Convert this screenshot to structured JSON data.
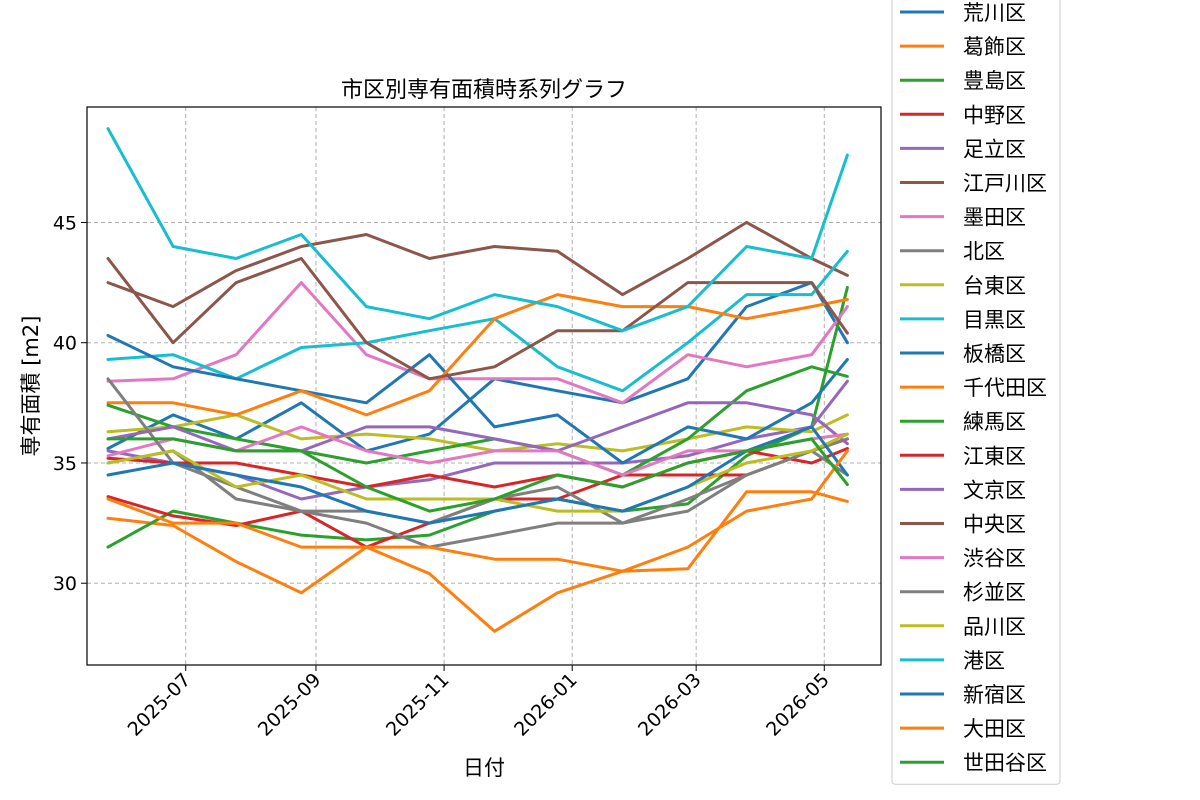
{
  "chart_data": {
    "type": "line",
    "title": "市区別専有面積時系列グラフ",
    "xlabel": "日付",
    "ylabel": "専有面積 [m2]",
    "x_range": [
      "2025-05-15",
      "2026-05-28"
    ],
    "ylim": [
      26.6,
      49.8
    ],
    "x_ticks": [
      "2025-07",
      "2025-09",
      "2025-11",
      "2026-01",
      "2026-03",
      "2026-05"
    ],
    "y_ticks": [
      30,
      35,
      40,
      45
    ],
    "grid": true,
    "legend_position": "right",
    "x": [
      "2025-05-25",
      "2025-06-25",
      "2025-07-25",
      "2025-08-25",
      "2025-09-25",
      "2025-10-25",
      "2025-11-25",
      "2025-12-25",
      "2026-01-25",
      "2026-02-25",
      "2026-03-25",
      "2026-04-25",
      "2026-05-12"
    ],
    "series": [
      {
        "name": "荒川区",
        "color": "#1f77b4",
        "values": [
          35.6,
          37.0,
          36.0,
          37.5,
          35.5,
          36.2,
          38.5,
          38.0,
          37.5,
          38.5,
          41.5,
          42.5,
          40.0
        ]
      },
      {
        "name": "葛飾区",
        "color": "#ff7f0e",
        "values": [
          32.7,
          32.4,
          30.9,
          29.6,
          31.5,
          30.4,
          28.0,
          29.6,
          30.5,
          30.6,
          33.8,
          33.8,
          33.4
        ]
      },
      {
        "name": "豊島区",
        "color": "#2ca02c",
        "values": [
          31.5,
          33.0,
          32.5,
          32.0,
          31.8,
          32.0,
          33.0,
          33.5,
          33.0,
          33.3,
          35.3,
          36.5,
          42.3
        ]
      },
      {
        "name": "中野区",
        "color": "#d62728",
        "values": [
          33.6,
          32.8,
          32.4,
          33.0,
          31.5,
          32.5,
          33.5,
          33.5,
          34.5,
          34.5,
          34.5,
          35.5,
          36.0
        ]
      },
      {
        "name": "足立区",
        "color": "#9467bd",
        "values": [
          35.5,
          35.0,
          34.5,
          33.5,
          34.0,
          34.3,
          35.0,
          35.0,
          35.0,
          35.3,
          36.0,
          36.5,
          38.4
        ]
      },
      {
        "name": "江戸川区",
        "color": "#8c564b",
        "values": [
          42.5,
          41.5,
          43.0,
          44.0,
          44.5,
          43.5,
          44.0,
          43.8,
          42.0,
          43.5,
          45.0,
          43.5,
          42.8
        ]
      },
      {
        "name": "墨田区",
        "color": "#e377c2",
        "values": [
          38.4,
          38.5,
          39.5,
          42.5,
          39.5,
          38.5,
          38.5,
          38.5,
          37.5,
          39.5,
          39.0,
          39.5,
          41.5
        ]
      },
      {
        "name": "北区",
        "color": "#7f7f7f",
        "values": [
          35.0,
          35.5,
          33.5,
          33.0,
          33.0,
          32.5,
          33.5,
          34.0,
          32.5,
          33.0,
          34.5,
          35.5,
          36.0
        ]
      },
      {
        "name": "台東区",
        "color": "#bcbd22",
        "values": [
          36.3,
          36.5,
          37.0,
          36.0,
          36.2,
          36.0,
          35.5,
          35.8,
          35.5,
          36.0,
          36.5,
          36.3,
          37.0
        ]
      },
      {
        "name": "目黒区",
        "color": "#17becf",
        "values": [
          39.3,
          39.5,
          38.5,
          39.8,
          40.0,
          40.5,
          41.0,
          39.0,
          38.0,
          40.0,
          42.0,
          42.0,
          43.8
        ]
      },
      {
        "name": "板橋区",
        "color": "#1f77b4",
        "values": [
          40.3,
          39.0,
          38.5,
          38.0,
          37.5,
          39.5,
          36.5,
          37.0,
          35.0,
          36.5,
          36.0,
          37.5,
          39.3
        ]
      },
      {
        "name": "千代田区",
        "color": "#ff7f0e",
        "values": [
          37.5,
          37.5,
          37.0,
          38.0,
          37.0,
          38.0,
          41.0,
          42.0,
          41.5,
          41.5,
          41.0,
          41.5,
          41.8
        ]
      },
      {
        "name": "練馬区",
        "color": "#2ca02c",
        "values": [
          37.4,
          36.5,
          36.0,
          35.5,
          35.0,
          35.5,
          36.0,
          35.5,
          34.5,
          36.0,
          38.0,
          39.0,
          38.6
        ]
      },
      {
        "name": "江東区",
        "color": "#d62728",
        "values": [
          35.2,
          35.0,
          35.0,
          34.5,
          34.0,
          34.5,
          34.0,
          34.5,
          34.0,
          35.0,
          35.5,
          35.0,
          35.6
        ]
      },
      {
        "name": "文京区",
        "color": "#9467bd",
        "values": [
          36.0,
          36.5,
          35.5,
          35.5,
          36.5,
          36.5,
          36.0,
          35.5,
          36.5,
          37.5,
          37.5,
          37.0,
          35.8
        ]
      },
      {
        "name": "中央区",
        "color": "#8c564b",
        "values": [
          43.5,
          40.0,
          42.5,
          43.5,
          40.0,
          38.5,
          39.0,
          40.5,
          40.5,
          42.5,
          42.5,
          42.5,
          40.4
        ]
      },
      {
        "name": "渋谷区",
        "color": "#e377c2",
        "values": [
          35.3,
          36.0,
          35.5,
          36.5,
          35.5,
          35.0,
          35.5,
          35.5,
          34.5,
          35.5,
          35.5,
          36.0,
          36.2
        ]
      },
      {
        "name": "杉並区",
        "color": "#7f7f7f",
        "values": [
          38.5,
          35.0,
          34.0,
          33.0,
          32.5,
          31.5,
          32.0,
          32.5,
          32.5,
          33.5,
          34.5,
          35.5,
          34.5
        ]
      },
      {
        "name": "品川区",
        "color": "#bcbd22",
        "values": [
          35.0,
          35.5,
          34.0,
          34.5,
          33.5,
          33.5,
          33.5,
          33.0,
          33.0,
          34.0,
          35.0,
          35.5,
          36.2
        ]
      },
      {
        "name": "港区",
        "color": "#17becf",
        "values": [
          48.9,
          44.0,
          43.5,
          44.5,
          41.5,
          41.0,
          42.0,
          41.5,
          40.5,
          41.5,
          44.0,
          43.5,
          47.8
        ]
      },
      {
        "name": "新宿区",
        "color": "#1f77b4",
        "values": [
          34.5,
          35.0,
          34.5,
          34.0,
          33.0,
          32.5,
          33.0,
          33.5,
          33.0,
          34.0,
          35.5,
          36.5,
          34.5
        ]
      },
      {
        "name": "大田区",
        "color": "#ff7f0e",
        "values": [
          33.5,
          32.5,
          32.5,
          31.5,
          31.5,
          31.5,
          31.0,
          31.0,
          30.5,
          31.5,
          33.0,
          33.5,
          35.5
        ]
      },
      {
        "name": "世田谷区",
        "color": "#2ca02c",
        "values": [
          36.0,
          36.0,
          35.5,
          35.5,
          34.0,
          33.0,
          33.5,
          34.5,
          34.0,
          35.0,
          35.5,
          36.0,
          34.1
        ]
      }
    ]
  }
}
